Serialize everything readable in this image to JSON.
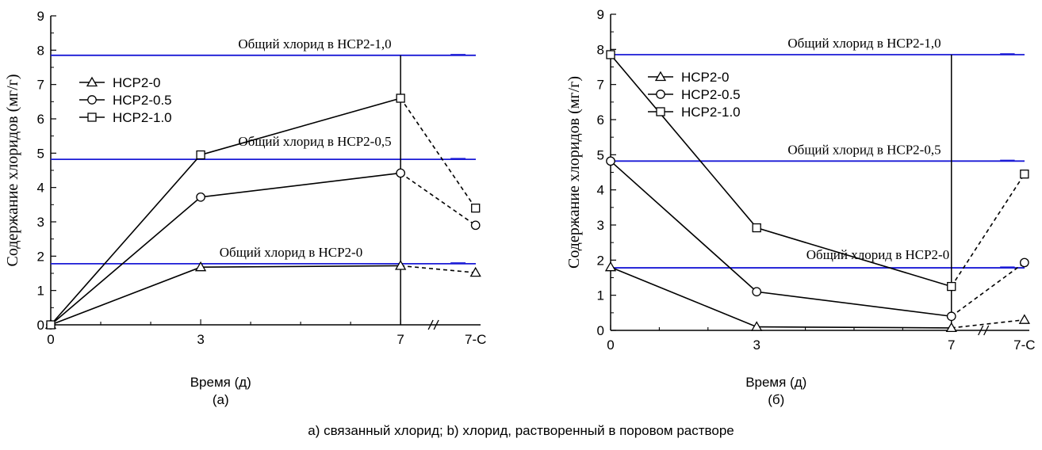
{
  "caption": "а) связанный хлорид; b) хлорид, растворенный в поровом растворе",
  "colors": {
    "reference_line": "#1a1ad6",
    "series": "#000000"
  },
  "chart_data": [
    {
      "type": "line",
      "panel_label": "(а)",
      "xlabel": "Время (д)",
      "ylabel": "Содержание хлоридов  (мг/г)",
      "categories": [
        "0",
        "3",
        "7",
        "7-C"
      ],
      "x": [
        0,
        3,
        7,
        8.5
      ],
      "xlim": [
        0,
        8.6
      ],
      "ylim": [
        0,
        9
      ],
      "yticks": [
        "0",
        "1",
        "2",
        "3",
        "4",
        "5",
        "6",
        "7",
        "8",
        "9"
      ],
      "grid": false,
      "axis_break_between": [
        "7",
        "7-C"
      ],
      "series": [
        {
          "name": "HCP2-0",
          "marker": "triangle",
          "values": [
            0.0,
            1.68,
            1.72,
            1.52
          ]
        },
        {
          "name": "HCP2-0.5",
          "marker": "circle",
          "values": [
            0.0,
            3.72,
            4.42,
            2.9
          ]
        },
        {
          "name": "HCP2-1.0",
          "marker": "square",
          "values": [
            0.0,
            4.95,
            6.6,
            3.4
          ]
        }
      ],
      "reference_lines": [
        {
          "y": 7.85,
          "label": "Общий хлорид в HCP2-1,0"
        },
        {
          "y": 4.82,
          "label": "Общий  хлорид в HCP2-0,5"
        },
        {
          "y": 1.78,
          "label": "Общий хлорид в HCP2-0"
        }
      ],
      "vertical_line_at": "7",
      "legend_position": "top-left"
    },
    {
      "type": "line",
      "panel_label": "(б)",
      "xlabel": "Время (д)",
      "ylabel": "Содержание хлоридов  (мг/г)",
      "categories": [
        "0",
        "3",
        "7",
        "7-C"
      ],
      "x": [
        0,
        3,
        7,
        8.5
      ],
      "xlim": [
        0,
        8.6
      ],
      "ylim": [
        0,
        9
      ],
      "yticks": [
        "0",
        "1",
        "2",
        "3",
        "4",
        "5",
        "6",
        "7",
        "8",
        "9"
      ],
      "grid": false,
      "axis_break_between": [
        "7",
        "7-C"
      ],
      "series": [
        {
          "name": "HCP2-0",
          "marker": "triangle",
          "values": [
            1.8,
            0.1,
            0.07,
            0.3
          ]
        },
        {
          "name": "HCP2-0.5",
          "marker": "circle",
          "values": [
            4.82,
            1.1,
            0.4,
            1.93
          ]
        },
        {
          "name": "HCP2-1.0",
          "marker": "square",
          "values": [
            7.85,
            2.92,
            1.25,
            4.45
          ]
        }
      ],
      "reference_lines": [
        {
          "y": 7.85,
          "label": "Общий хлорид в HCP2-1,0"
        },
        {
          "y": 4.82,
          "label": "Общий хлорид в HCP2-0,5"
        },
        {
          "y": 1.78,
          "label": "Общий хлорид в HCP2-0"
        }
      ],
      "vertical_line_at": "7",
      "legend_position": "top-left"
    }
  ]
}
